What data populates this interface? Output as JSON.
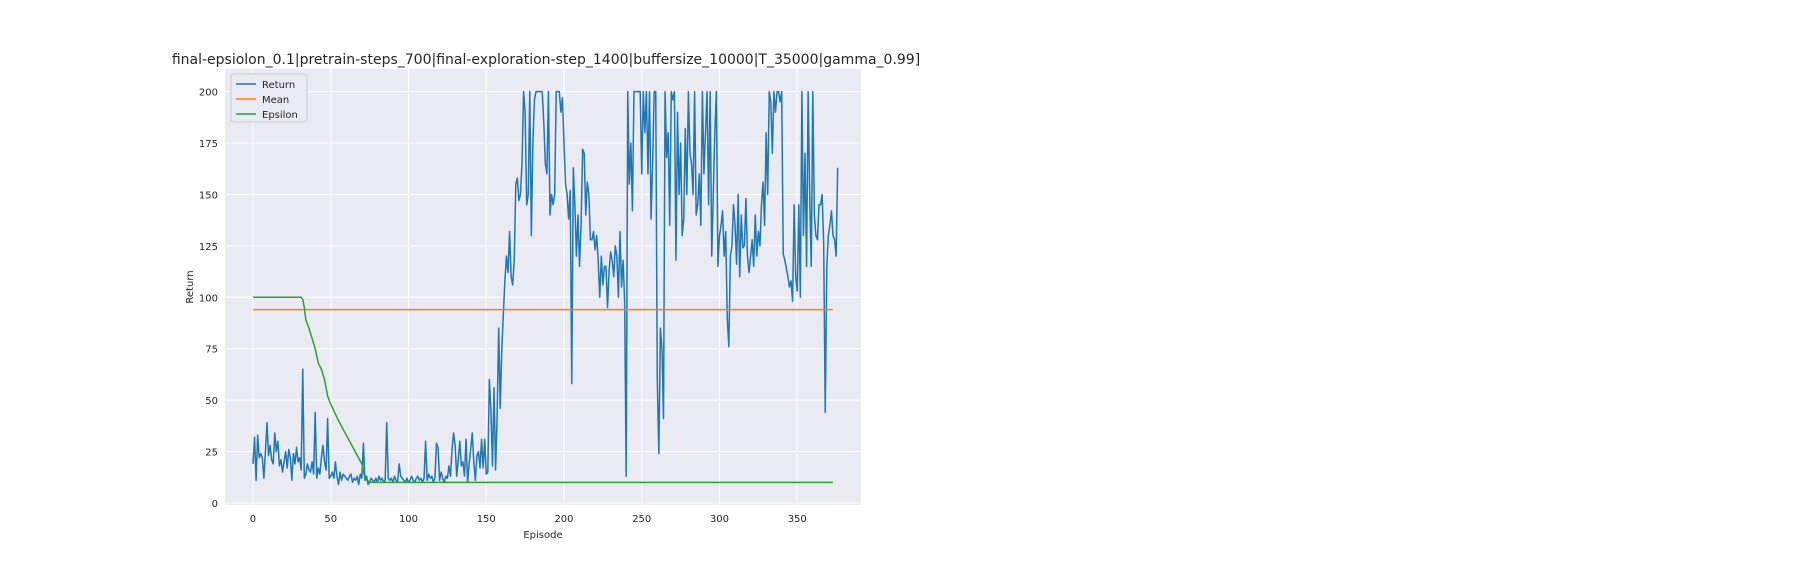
{
  "chart_data": {
    "type": "line",
    "title": "final-epsiolon_0.1|pretrain-steps_700|final-exploration-step_1400|buffersize_10000|T_35000|gamma_0.99]",
    "xlabel": "Episode",
    "ylabel": "Return",
    "xlim": [
      -18,
      391
    ],
    "ylim": [
      -1,
      211
    ],
    "xticks": [
      0,
      50,
      100,
      150,
      200,
      250,
      300,
      350
    ],
    "yticks": [
      0,
      25,
      50,
      75,
      100,
      125,
      150,
      175,
      200
    ],
    "grid": true,
    "legend": "top-left",
    "background": "#eaeaf2",
    "colors": {
      "Return": "#1f77b4",
      "Mean": "#ff7f0e",
      "Epsilon": "#2ca02c"
    },
    "series": [
      {
        "name": "Return",
        "color": "#1f77b4",
        "values": [
          19,
          32,
          11,
          33,
          22,
          24,
          22,
          12,
          25,
          39,
          23,
          28,
          21,
          19,
          34,
          25,
          30,
          18,
          21,
          15,
          20,
          25,
          17,
          26,
          22,
          11,
          24,
          19,
          27,
          20,
          22,
          16,
          65,
          12,
          14,
          19,
          16,
          15,
          20,
          14,
          44,
          12,
          17,
          14,
          22,
          28,
          20,
          16,
          41,
          12,
          13,
          15,
          12,
          20,
          13,
          9,
          15,
          11,
          14,
          13,
          12,
          11,
          13,
          14,
          10,
          12,
          11,
          13,
          9,
          14,
          12,
          29,
          11,
          13,
          9,
          10,
          12,
          11,
          10,
          12,
          10,
          13,
          11,
          12,
          10,
          11,
          39,
          12,
          11,
          12,
          10,
          13,
          11,
          10,
          19,
          13,
          12,
          11,
          10,
          12,
          10,
          11,
          13,
          11,
          10,
          12,
          13,
          11,
          12,
          10,
          12,
          30,
          11,
          14,
          12,
          13,
          10,
          12,
          29,
          27,
          11,
          15,
          12,
          10,
          13,
          12,
          18,
          13,
          26,
          34,
          28,
          13,
          21,
          30,
          18,
          20,
          13,
          31,
          10,
          19,
          26,
          34,
          20,
          11,
          23,
          25,
          17,
          31,
          17,
          31,
          14,
          15,
          60,
          45,
          18,
          56,
          16,
          42,
          85,
          46,
          75,
          92,
          108,
          120,
          112,
          132,
          110,
          106,
          118,
          155,
          158,
          147,
          150,
          165,
          200,
          190,
          145,
          150,
          200,
          130,
          175,
          196,
          200,
          200,
          200,
          200,
          200,
          185,
          165,
          160,
          200,
          140,
          150,
          145,
          150,
          200,
          200,
          200,
          190,
          197,
          175,
          155,
          150,
          138,
          152,
          58,
          163,
          145,
          120,
          140,
          115,
          136,
          172,
          170,
          140,
          156,
          150,
          128,
          128,
          132,
          123,
          130,
          118,
          100,
          120,
          106,
          115,
          115,
          95,
          113,
          122,
          118,
          110,
          125,
          120,
          100,
          132,
          105,
          118,
          98,
          13,
          200,
          155,
          175,
          142,
          200,
          200,
          200,
          200,
          200,
          160,
          200,
          180,
          200,
          160,
          200,
          138,
          165,
          200,
          200,
          60,
          24,
          85,
          75,
          41,
          200,
          168,
          180,
          135,
          200,
          196,
          200,
          118,
          190,
          150,
          175,
          130,
          138,
          182,
          150,
          200,
          170,
          165,
          150,
          200,
          140,
          145,
          160,
          135,
          200,
          160,
          180,
          200,
          145,
          200,
          120,
          150,
          180,
          200,
          115,
          130,
          135,
          142,
          120,
          132,
          90,
          76,
          120,
          125,
          145,
          135,
          116,
          150,
          110,
          140,
          124,
          125,
          148,
          120,
          112,
          120,
          128,
          115,
          140,
          120,
          132,
          125,
          145,
          156,
          135,
          180,
          150,
          200,
          195,
          170,
          200,
          190,
          200,
          200,
          195,
          200,
          121,
          118,
          114,
          110,
          105,
          108,
          98,
          145,
          110,
          103,
          145,
          100,
          200,
          130,
          170,
          115,
          200,
          150,
          115,
          200,
          140,
          130,
          128,
          145,
          145,
          150,
          126,
          44,
          115,
          130,
          135,
          142,
          130,
          128,
          120,
          163
        ],
        "values_start_x": 0
      },
      {
        "name": "Mean",
        "color": "#ff7f0e",
        "x": [
          0,
          373
        ],
        "values": [
          94,
          94
        ]
      },
      {
        "name": "Epsilon",
        "color": "#2ca02c",
        "x": [
          0,
          31,
          32,
          33,
          34,
          36,
          38,
          40,
          42,
          44,
          46,
          48,
          50,
          55,
          60,
          65,
          70,
          72,
          75,
          373
        ],
        "values": [
          100,
          100,
          99,
          95,
          89,
          85,
          80,
          75,
          68,
          65,
          60,
          52,
          48,
          40,
          33,
          26,
          19,
          12,
          10,
          10
        ]
      }
    ]
  }
}
